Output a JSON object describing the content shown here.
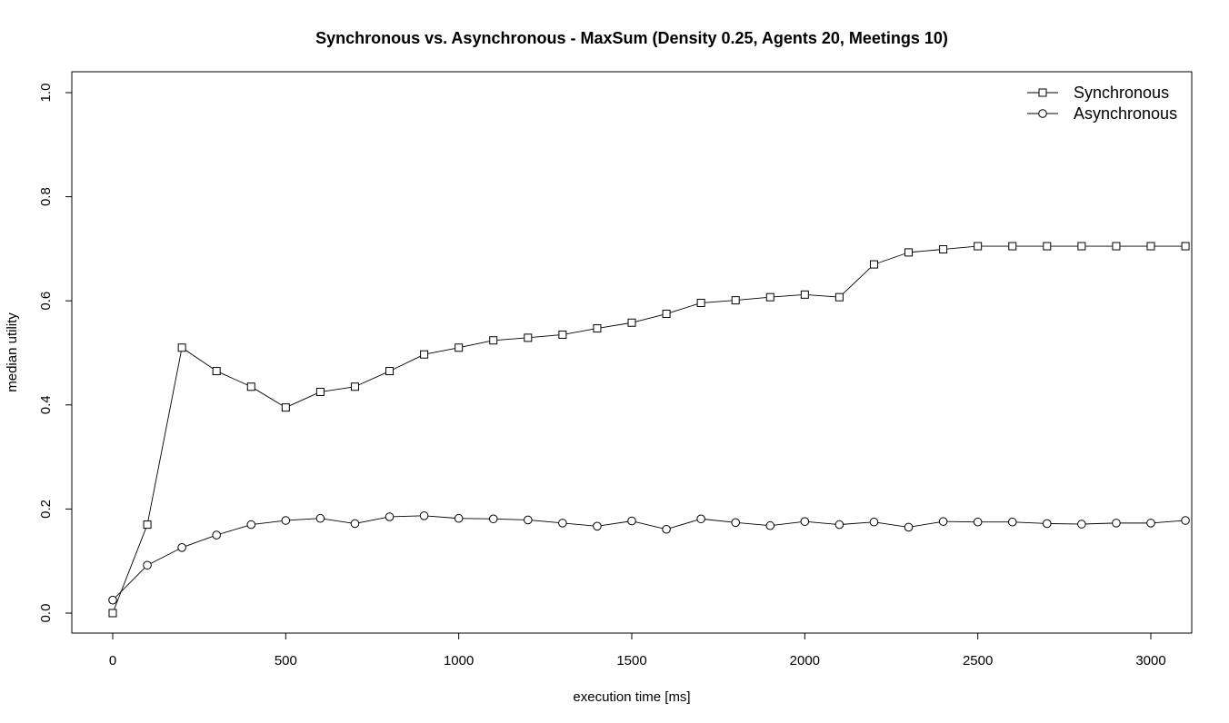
{
  "chart_data": {
    "type": "line",
    "title": "Synchronous vs. Asynchronous - MaxSum (Density 0.25, Agents 20, Meetings 10)",
    "xlabel": "execution time [ms]",
    "ylabel": "median utility",
    "xlim": [
      0,
      3100
    ],
    "ylim": [
      0,
      1.0
    ],
    "x_ticks": [
      0,
      500,
      1000,
      1500,
      2000,
      2500,
      3000
    ],
    "y_ticks": [
      0.0,
      0.2,
      0.4,
      0.6,
      0.8,
      1.0
    ],
    "x_tick_labels": [
      "0",
      "500",
      "1000",
      "1500",
      "2000",
      "2500",
      "3000"
    ],
    "y_tick_labels": [
      "0.0",
      "0.2",
      "0.4",
      "0.6",
      "0.8",
      "1.0"
    ],
    "grid": false,
    "legend_position": "top-right",
    "x": [
      0,
      100,
      200,
      300,
      400,
      500,
      600,
      700,
      800,
      900,
      1000,
      1100,
      1200,
      1300,
      1400,
      1500,
      1600,
      1700,
      1800,
      1900,
      2000,
      2100,
      2200,
      2300,
      2400,
      2500,
      2600,
      2700,
      2800,
      2900,
      3000,
      3100
    ],
    "series": [
      {
        "name": "Synchronous",
        "marker": "square",
        "values": [
          0.0,
          0.17,
          0.51,
          0.465,
          0.435,
          0.395,
          0.425,
          0.435,
          0.465,
          0.497,
          0.51,
          0.524,
          0.529,
          0.535,
          0.547,
          0.558,
          0.575,
          0.596,
          0.601,
          0.607,
          0.612,
          0.607,
          0.67,
          0.693,
          0.699,
          0.705,
          0.705,
          0.705,
          0.705,
          0.705,
          0.705,
          0.705
        ]
      },
      {
        "name": "Asynchronous",
        "marker": "circle",
        "values": [
          0.025,
          0.092,
          0.126,
          0.15,
          0.17,
          0.178,
          0.182,
          0.172,
          0.185,
          0.187,
          0.182,
          0.181,
          0.179,
          0.173,
          0.167,
          0.177,
          0.161,
          0.181,
          0.174,
          0.168,
          0.176,
          0.17,
          0.175,
          0.165,
          0.176,
          0.175,
          0.175,
          0.172,
          0.171,
          0.173,
          0.173,
          0.178
        ]
      }
    ]
  }
}
